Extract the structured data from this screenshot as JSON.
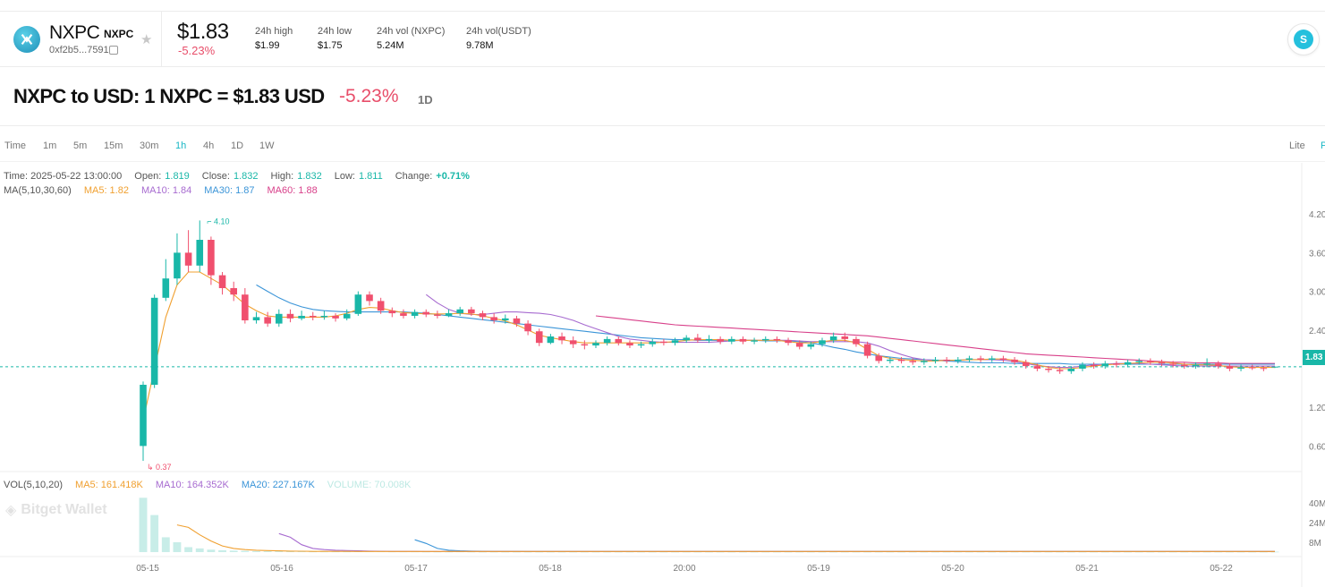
{
  "token": {
    "symbol": "NXPC",
    "symbol_small": "NXPC",
    "address": "0xf2b5...7591",
    "price": "$1.83",
    "change": "-5.23%"
  },
  "stats": [
    {
      "label": "24h high",
      "value": "$1.99"
    },
    {
      "label": "24h low",
      "value": "$1.75"
    },
    {
      "label": "24h vol (NXPC)",
      "value": "5.24M"
    },
    {
      "label": "24h vol(USDT)",
      "value": "9.78M"
    }
  ],
  "conversion": {
    "text": "NXPC to USD: 1 NXPC = $1.83 USD",
    "change": "-5.23%",
    "timeframe": "1D"
  },
  "timeframes": [
    "Time",
    "1m",
    "5m",
    "15m",
    "30m",
    "1h",
    "4h",
    "1D",
    "1W"
  ],
  "active_timeframe": "1h",
  "view_modes": [
    "Lite",
    "P"
  ],
  "ohlc": {
    "time_label": "Time: 2025-05-22 13:00:00",
    "open_label": "Open:",
    "open": "1.819",
    "close_label": "Close:",
    "close": "1.832",
    "high_label": "High:",
    "high": "1.832",
    "low_label": "Low:",
    "low": "1.811",
    "change_label": "Change:",
    "change": "+0.71%"
  },
  "ma": {
    "label": "MA(5,10,30,60)",
    "ma5": "MA5: 1.82",
    "ma10": "MA10: 1.84",
    "ma30": "MA30: 1.87",
    "ma60": "MA60: 1.88"
  },
  "vol": {
    "label": "VOL(5,10,20)",
    "ma5": "MA5: 161.418K",
    "ma10": "MA10: 164.352K",
    "ma20": "MA20: 227.167K",
    "volume": "VOLUME: 70.008K"
  },
  "watermark": "Bitget Wallet",
  "colors": {
    "up": "#19b7a8",
    "down": "#f0506e",
    "ma5": "#f0a030",
    "ma10": "#a76bd0",
    "ma30": "#3b95d8",
    "ma60": "#d8408a",
    "accent": "#19b7c5"
  },
  "chart_data": {
    "type": "candlestick",
    "price_axis_ticks": [
      "4.20",
      "3.60",
      "3.00",
      "2.40",
      "1.80",
      "1.20",
      "0.60"
    ],
    "volume_axis_ticks": [
      "40M",
      "24M",
      "8M"
    ],
    "x_ticks": [
      "05-15",
      "05-16",
      "05-17",
      "05-18",
      "20:00",
      "05-19",
      "05-20",
      "05-21",
      "05-22"
    ],
    "current_price": "1.83",
    "max_marker": "4.10",
    "min_marker": "0.37",
    "ylim": [
      0.3,
      4.3
    ],
    "vol_ylim": [
      0,
      50
    ],
    "candles": [
      [
        0.6,
        1.55,
        1.6,
        0.37
      ],
      [
        1.55,
        2.9,
        2.95,
        1.5
      ],
      [
        2.9,
        3.2,
        3.5,
        2.85
      ],
      [
        3.2,
        3.6,
        3.9,
        3.1
      ],
      [
        3.6,
        3.4,
        3.95,
        3.3
      ],
      [
        3.4,
        3.8,
        4.1,
        3.3
      ],
      [
        3.8,
        3.25,
        3.85,
        3.1
      ],
      [
        3.25,
        3.05,
        3.3,
        2.95
      ],
      [
        3.05,
        2.95,
        3.15,
        2.85
      ],
      [
        2.95,
        2.55,
        3.05,
        2.5
      ],
      [
        2.55,
        2.6,
        2.68,
        2.5
      ],
      [
        2.6,
        2.5,
        2.68,
        2.45
      ],
      [
        2.5,
        2.65,
        2.72,
        2.45
      ],
      [
        2.65,
        2.58,
        2.72,
        2.52
      ],
      [
        2.58,
        2.62,
        2.7,
        2.55
      ],
      [
        2.62,
        2.6,
        2.68,
        2.55
      ],
      [
        2.6,
        2.62,
        2.7,
        2.56
      ],
      [
        2.62,
        2.58,
        2.66,
        2.53
      ],
      [
        2.58,
        2.65,
        2.72,
        2.55
      ],
      [
        2.65,
        2.95,
        3.0,
        2.62
      ],
      [
        2.95,
        2.85,
        3.0,
        2.78
      ],
      [
        2.85,
        2.7,
        2.9,
        2.65
      ],
      [
        2.7,
        2.66,
        2.75,
        2.6
      ],
      [
        2.66,
        2.62,
        2.72,
        2.58
      ],
      [
        2.62,
        2.68,
        2.72,
        2.58
      ],
      [
        2.68,
        2.64,
        2.72,
        2.6
      ],
      [
        2.64,
        2.62,
        2.7,
        2.58
      ],
      [
        2.62,
        2.66,
        2.72,
        2.6
      ],
      [
        2.66,
        2.72,
        2.76,
        2.62
      ],
      [
        2.72,
        2.66,
        2.76,
        2.62
      ],
      [
        2.66,
        2.6,
        2.7,
        2.55
      ],
      [
        2.6,
        2.55,
        2.66,
        2.5
      ],
      [
        2.55,
        2.58,
        2.64,
        2.5
      ],
      [
        2.58,
        2.5,
        2.62,
        2.45
      ],
      [
        2.5,
        2.38,
        2.55,
        2.32
      ],
      [
        2.38,
        2.2,
        2.42,
        2.15
      ],
      [
        2.2,
        2.3,
        2.34,
        2.18
      ],
      [
        2.3,
        2.24,
        2.36,
        2.18
      ],
      [
        2.24,
        2.18,
        2.3,
        2.12
      ],
      [
        2.18,
        2.16,
        2.24,
        2.1
      ],
      [
        2.16,
        2.2,
        2.24,
        2.12
      ],
      [
        2.2,
        2.26,
        2.3,
        2.16
      ],
      [
        2.26,
        2.2,
        2.3,
        2.16
      ],
      [
        2.2,
        2.16,
        2.24,
        2.12
      ],
      [
        2.16,
        2.18,
        2.22,
        2.12
      ],
      [
        2.18,
        2.22,
        2.26,
        2.14
      ],
      [
        2.22,
        2.2,
        2.26,
        2.16
      ],
      [
        2.2,
        2.24,
        2.28,
        2.16
      ],
      [
        2.24,
        2.28,
        2.32,
        2.2
      ],
      [
        2.28,
        2.24,
        2.34,
        2.2
      ],
      [
        2.24,
        2.26,
        2.32,
        2.2
      ],
      [
        2.26,
        2.22,
        2.3,
        2.18
      ],
      [
        2.22,
        2.26,
        2.3,
        2.18
      ],
      [
        2.26,
        2.22,
        2.3,
        2.18
      ],
      [
        2.22,
        2.24,
        2.28,
        2.18
      ],
      [
        2.24,
        2.26,
        2.3,
        2.2
      ],
      [
        2.26,
        2.24,
        2.3,
        2.2
      ],
      [
        2.24,
        2.2,
        2.28,
        2.16
      ],
      [
        2.2,
        2.14,
        2.24,
        2.1
      ],
      [
        2.14,
        2.18,
        2.22,
        2.1
      ],
      [
        2.18,
        2.24,
        2.28,
        2.14
      ],
      [
        2.24,
        2.3,
        2.36,
        2.2
      ],
      [
        2.3,
        2.26,
        2.36,
        2.22
      ],
      [
        2.26,
        2.18,
        2.3,
        2.14
      ],
      [
        2.18,
        2.0,
        2.22,
        1.96
      ],
      [
        2.0,
        1.92,
        2.04,
        1.88
      ],
      [
        1.92,
        1.94,
        1.98,
        1.88
      ],
      [
        1.94,
        1.92,
        1.98,
        1.88
      ],
      [
        1.92,
        1.9,
        1.96,
        1.86
      ],
      [
        1.9,
        1.92,
        1.96,
        1.86
      ],
      [
        1.92,
        1.94,
        1.98,
        1.88
      ],
      [
        1.94,
        1.92,
        1.98,
        1.88
      ],
      [
        1.92,
        1.94,
        1.98,
        1.88
      ],
      [
        1.94,
        1.96,
        2.0,
        1.9
      ],
      [
        1.96,
        1.94,
        2.0,
        1.9
      ],
      [
        1.94,
        1.96,
        2.0,
        1.9
      ],
      [
        1.96,
        1.94,
        2.0,
        1.9
      ],
      [
        1.94,
        1.9,
        1.98,
        1.86
      ],
      [
        1.9,
        1.84,
        1.94,
        1.8
      ],
      [
        1.84,
        1.8,
        1.88,
        1.76
      ],
      [
        1.8,
        1.78,
        1.84,
        1.74
      ],
      [
        1.78,
        1.76,
        1.82,
        1.72
      ],
      [
        1.76,
        1.8,
        1.84,
        1.72
      ],
      [
        1.8,
        1.86,
        1.9,
        1.76
      ],
      [
        1.86,
        1.84,
        1.9,
        1.8
      ],
      [
        1.84,
        1.88,
        1.92,
        1.8
      ],
      [
        1.88,
        1.86,
        1.92,
        1.82
      ],
      [
        1.86,
        1.9,
        1.94,
        1.82
      ],
      [
        1.9,
        1.92,
        1.96,
        1.86
      ],
      [
        1.92,
        1.9,
        1.96,
        1.86
      ],
      [
        1.9,
        1.88,
        1.94,
        1.84
      ],
      [
        1.88,
        1.86,
        1.92,
        1.82
      ],
      [
        1.86,
        1.84,
        1.9,
        1.8
      ],
      [
        1.84,
        1.86,
        1.9,
        1.8
      ],
      [
        1.86,
        1.88,
        1.96,
        1.82
      ],
      [
        1.88,
        1.84,
        1.92,
        1.8
      ],
      [
        1.84,
        1.8,
        1.88,
        1.76
      ],
      [
        1.8,
        1.82,
        1.86,
        1.76
      ],
      [
        1.82,
        1.81,
        1.86,
        1.78
      ],
      [
        1.81,
        1.8,
        1.84,
        1.76
      ],
      [
        1.819,
        1.832,
        1.832,
        1.811
      ]
    ],
    "ma5": [
      1.0,
      1.8,
      2.6,
      3.1,
      3.3,
      3.3,
      3.2,
      3.1,
      2.95,
      2.8,
      2.7,
      2.62,
      2.6,
      2.6,
      2.6,
      2.6,
      2.6,
      2.62,
      2.66,
      2.72,
      2.75,
      2.74,
      2.7,
      2.67,
      2.66,
      2.65,
      2.65,
      2.65,
      2.66,
      2.65,
      2.62,
      2.58,
      2.54,
      2.48,
      2.4,
      2.32,
      2.28,
      2.25,
      2.22,
      2.2,
      2.2,
      2.2,
      2.2,
      2.2,
      2.2,
      2.2,
      2.21,
      2.22,
      2.24,
      2.25,
      2.25,
      2.25,
      2.24,
      2.24,
      2.24,
      2.24,
      2.24,
      2.22,
      2.2,
      2.2,
      2.22,
      2.24,
      2.24,
      2.2,
      2.1,
      2.0,
      1.96,
      1.94,
      1.93,
      1.92,
      1.92,
      1.93,
      1.93,
      1.94,
      1.94,
      1.95,
      1.95,
      1.93,
      1.9,
      1.86,
      1.82,
      1.8,
      1.8,
      1.82,
      1.84,
      1.86,
      1.87,
      1.88,
      1.89,
      1.9,
      1.9,
      1.89,
      1.87,
      1.86,
      1.86,
      1.85,
      1.83,
      1.82,
      1.82,
      1.82,
      1.82
    ],
    "ma10_start": 25,
    "ma10": [
      2.95,
      2.82,
      2.72,
      2.66,
      2.64,
      2.64,
      2.66,
      2.68,
      2.68,
      2.67,
      2.66,
      2.64,
      2.6,
      2.55,
      2.48,
      2.42,
      2.36,
      2.3,
      2.26,
      2.24,
      2.22,
      2.21,
      2.21,
      2.21,
      2.21,
      2.21,
      2.22,
      2.23,
      2.24,
      2.24,
      2.24,
      2.24,
      2.24,
      2.23,
      2.22,
      2.22,
      2.22,
      2.22,
      2.22,
      2.2,
      2.15,
      2.08,
      2.02,
      1.97,
      1.94,
      1.93,
      1.93,
      1.93,
      1.94,
      1.94,
      1.94,
      1.93,
      1.91,
      1.88,
      1.85,
      1.83,
      1.82,
      1.82,
      1.84,
      1.86,
      1.87,
      1.88,
      1.88,
      1.88,
      1.87,
      1.86,
      1.85,
      1.84,
      1.84,
      1.84,
      1.84,
      1.84,
      1.84,
      1.84,
      1.84,
      1.84
    ],
    "ma30_start": 10,
    "ma30": [
      3.1,
      3.0,
      2.9,
      2.82,
      2.76,
      2.72,
      2.7,
      2.69,
      2.68,
      2.68,
      2.68,
      2.68,
      2.68,
      2.68,
      2.67,
      2.66,
      2.64,
      2.62,
      2.6,
      2.58,
      2.56,
      2.54,
      2.52,
      2.5,
      2.48,
      2.46,
      2.44,
      2.42,
      2.4,
      2.38,
      2.36,
      2.34,
      2.32,
      2.3,
      2.28,
      2.27,
      2.26,
      2.25,
      2.25,
      2.24,
      2.24,
      2.24,
      2.24,
      2.24,
      2.24,
      2.23,
      2.23,
      2.23,
      2.22,
      2.2,
      2.17,
      2.13,
      2.1,
      2.06,
      2.03,
      2.0,
      1.98,
      1.96,
      1.95,
      1.94,
      1.93,
      1.92,
      1.91,
      1.9,
      1.89,
      1.89,
      1.89,
      1.88,
      1.88,
      1.88,
      1.88,
      1.88,
      1.87,
      1.87,
      1.87,
      1.87,
      1.87,
      1.87,
      1.87,
      1.87,
      1.87,
      1.87,
      1.87,
      1.87,
      1.87,
      1.87,
      1.87,
      1.87,
      1.87,
      1.87,
      1.87
    ],
    "ma60_start": 40,
    "ma60": [
      2.62,
      2.6,
      2.58,
      2.56,
      2.54,
      2.52,
      2.5,
      2.48,
      2.47,
      2.46,
      2.45,
      2.44,
      2.43,
      2.42,
      2.41,
      2.4,
      2.39,
      2.38,
      2.37,
      2.36,
      2.35,
      2.34,
      2.33,
      2.32,
      2.31,
      2.29,
      2.27,
      2.25,
      2.23,
      2.21,
      2.19,
      2.17,
      2.15,
      2.13,
      2.11,
      2.09,
      2.07,
      2.05,
      2.03,
      2.02,
      2.01,
      2.0,
      1.99,
      1.98,
      1.97,
      1.96,
      1.95,
      1.94,
      1.93,
      1.92,
      1.91,
      1.9,
      1.9,
      1.89,
      1.89,
      1.89,
      1.88,
      1.88,
      1.88,
      1.88,
      1.88
    ],
    "volumes": [
      44,
      30,
      12,
      8,
      4,
      3,
      2,
      1.5,
      1.2,
      1,
      0.8,
      0.7,
      0.7,
      0.6,
      0.6,
      0.5,
      0.5,
      0.5,
      0.5,
      1.5,
      1.0,
      0.6,
      0.5,
      0.5,
      0.5,
      0.4,
      0.4,
      0.4,
      0.5,
      0.4
    ],
    "vol_ma5": [
      22,
      20,
      14,
      9,
      5,
      3,
      2,
      1.5,
      1.2,
      1,
      0.8,
      0.7,
      0.6,
      0.6,
      0.6,
      0.6,
      0.5,
      0.5,
      0.5,
      0.5,
      0.5,
      0.5,
      0.5,
      0.5,
      0.5,
      0.5
    ],
    "vol_ma10_start": 12,
    "vol_ma10": [
      15,
      12,
      6,
      3,
      2,
      1.5,
      1.2,
      1,
      0.8,
      0.7,
      0.6,
      0.6,
      0.6,
      0.5,
      0.5
    ],
    "vol_ma20_start": 24,
    "vol_ma20": [
      10,
      7,
      3,
      1.5,
      1,
      0.8,
      0.7,
      0.6,
      0.6,
      0.6,
      0.5
    ]
  }
}
